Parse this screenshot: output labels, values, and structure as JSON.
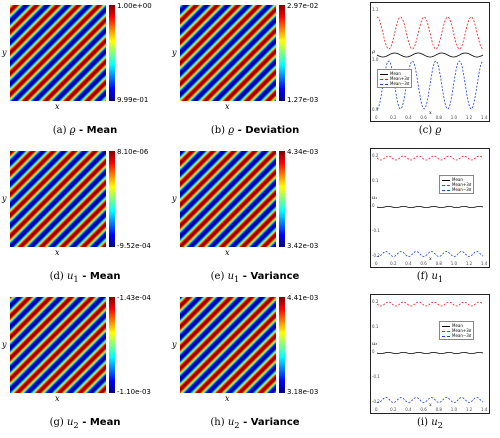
{
  "heatmaps": [
    {
      "id": "a",
      "letter": "(a) ",
      "sym": "ϱ",
      "sub": "",
      "desc": " - Mean",
      "max": "1.00e+00",
      "min": "9.99e-01",
      "xlabel": "x",
      "ylabel": "y",
      "phase": 0.0
    },
    {
      "id": "b",
      "letter": "(b) ",
      "sym": "ϱ",
      "sub": "",
      "desc": " - Deviation",
      "max": "2.97e-02",
      "min": "1.27e-03",
      "xlabel": "x",
      "ylabel": "y",
      "phase": 0.5
    },
    {
      "id": "d",
      "letter": "(d) ",
      "sym": "u",
      "sub": "1",
      "desc": " - Mean",
      "max": "8.10e-06",
      "min": "-9.52e-04",
      "xlabel": "x",
      "ylabel": "y",
      "phase": 0.2
    },
    {
      "id": "e",
      "letter": "(e) ",
      "sym": "u",
      "sub": "1",
      "desc": " - Variance",
      "max": "4.34e-03",
      "min": "3.42e-03",
      "xlabel": "x",
      "ylabel": "y",
      "phase": 0.7
    },
    {
      "id": "g",
      "letter": "(g) ",
      "sym": "u",
      "sub": "2",
      "desc": " - Mean",
      "max": "-1.43e-04",
      "min": "-1.10e-03",
      "xlabel": "x",
      "ylabel": "y",
      "phase": 0.35
    },
    {
      "id": "h",
      "letter": "(h) ",
      "sym": "u",
      "sub": "2",
      "desc": " - Variance",
      "max": "4.41e-03",
      "min": "3.18e-03",
      "xlabel": "x",
      "ylabel": "y",
      "phase": 0.85
    }
  ],
  "lineplots": [
    {
      "id": "c",
      "letter": "(c) ",
      "sym": "ϱ",
      "sub": "",
      "legend": [
        "Mean",
        "Mean+3σ",
        "Mean−3σ"
      ],
      "ylabel": "ρ",
      "xlabel": "x",
      "yticks": [
        "1.1",
        "1.0",
        "0.9"
      ],
      "xticks": [
        "0",
        "0.2",
        "0.4",
        "0.6",
        "0.8",
        "1.0",
        "1.2",
        "1.4"
      ]
    },
    {
      "id": "f",
      "letter": "(f) ",
      "sym": "u",
      "sub": "1",
      "legend": [
        "Mean",
        "Mean+3σ",
        "Mean−3σ"
      ],
      "ylabel": "u₁",
      "xlabel": "x",
      "yticks": [
        "0.2",
        "0.1",
        "0",
        "-0.1",
        "-0.2"
      ],
      "xticks": [
        "0",
        "0.2",
        "0.4",
        "0.6",
        "0.8",
        "1.0",
        "1.2",
        "1.4"
      ]
    },
    {
      "id": "i",
      "letter": "(i) ",
      "sym": "u",
      "sub": "2",
      "legend": [
        "Mean",
        "Mean+3σ",
        "Mean−3σ"
      ],
      "ylabel": "u₂",
      "xlabel": "x",
      "yticks": [
        "0.2",
        "0.1",
        "0",
        "-0.1",
        "-0.2"
      ],
      "xticks": [
        "0",
        "0.2",
        "0.4",
        "0.6",
        "0.8",
        "1.0",
        "1.2",
        "1.4"
      ]
    }
  ],
  "colors": {
    "mean": "#000000",
    "upper": "#e8201a",
    "lower": "#1a3fd6"
  }
}
